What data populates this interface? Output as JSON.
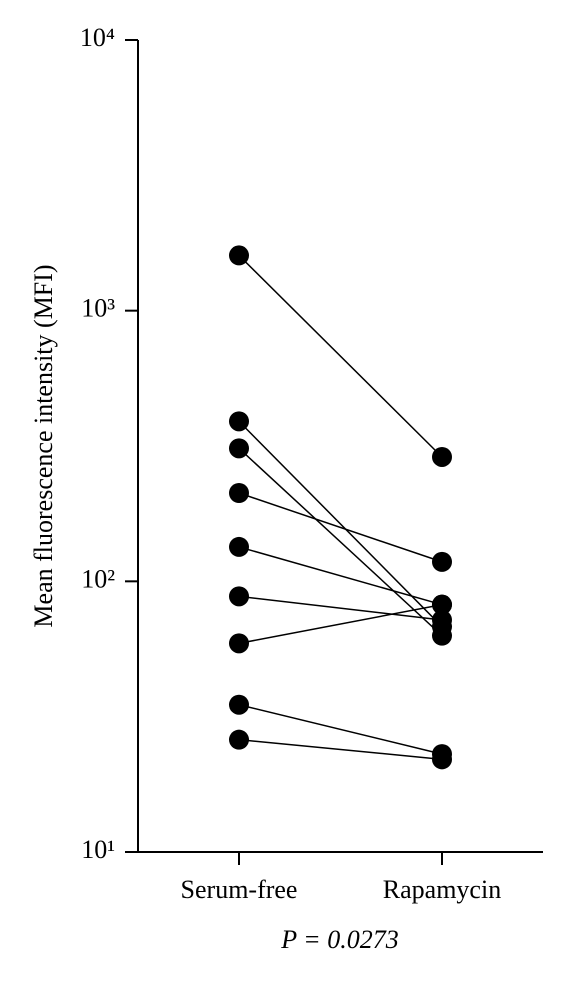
{
  "chart_data": {
    "type": "line",
    "y_label": "Mean fluorescence intensity (MFI)",
    "annotation": "P = 0.0273",
    "categories": [
      "Serum-free",
      "Rapamycin"
    ],
    "log_scale": true,
    "color": "#000000",
    "ylim": [
      10,
      10000
    ],
    "yticks": [
      {
        "value": 10,
        "label": "10¹"
      },
      {
        "value": 100,
        "label": "10²"
      },
      {
        "value": 1000,
        "label": "10³"
      },
      {
        "value": 10000,
        "label": "10⁴"
      }
    ],
    "series": [
      {
        "values": [
          1600,
          288
        ]
      },
      {
        "values": [
          390,
          68
        ]
      },
      {
        "values": [
          310,
          63
        ]
      },
      {
        "values": [
          212,
          118
        ]
      },
      {
        "values": [
          134,
          82
        ]
      },
      {
        "values": [
          88,
          72
        ]
      },
      {
        "values": [
          59,
          82
        ]
      },
      {
        "values": [
          35,
          23
        ]
      },
      {
        "values": [
          26,
          22
        ]
      }
    ]
  }
}
